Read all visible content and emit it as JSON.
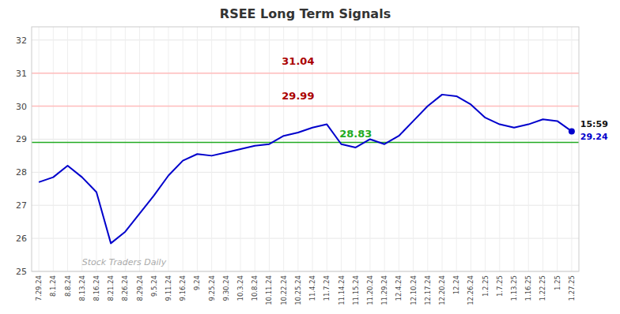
{
  "chart_data": {
    "type": "line",
    "title": "RSEE Long Term Signals",
    "color": "#0000cc",
    "grid": true,
    "ylim": [
      25.0,
      32.4
    ],
    "yticks": [
      25,
      26,
      27,
      28,
      29,
      30,
      31,
      32
    ],
    "categories": [
      "7.29.24",
      "8.1.24",
      "8.8.24",
      "8.13.24",
      "8.16.24",
      "8.21.24",
      "8.26.24",
      "8.29.24",
      "9.5.24",
      "9.11.24",
      "9.16.24",
      "9.24",
      "9.25.24",
      "9.30.24",
      "10.3.24",
      "10.8.24",
      "10.11.24",
      "10.22.24",
      "10.25.24",
      "11.4.24",
      "11.7.24",
      "11.14.24",
      "11.15.24",
      "11.20.24",
      "11.29.24",
      "12.4.24",
      "12.10.24",
      "12.17.24",
      "12.20.24",
      "12.24",
      "12.26.24",
      "1.2.25",
      "1.7.25",
      "1.13.25",
      "1.16.25",
      "1.22.25",
      "1.25",
      "1.27.25"
    ],
    "values": [
      27.7,
      27.85,
      28.2,
      27.85,
      27.4,
      25.85,
      26.2,
      26.75,
      27.3,
      27.9,
      28.35,
      28.55,
      28.5,
      28.6,
      28.7,
      28.8,
      28.85,
      29.1,
      29.2,
      29.35,
      29.45,
      28.85,
      28.75,
      29.0,
      28.85,
      29.1,
      29.55,
      30.0,
      30.35,
      30.3,
      30.05,
      29.65,
      29.45,
      29.35,
      29.45,
      29.6,
      29.55,
      29.24
    ],
    "reference_lines": [
      {
        "value": 28.9,
        "color": "#22aa22"
      },
      {
        "value": 31.0,
        "color": "#ffbbbb"
      },
      {
        "value": 30.0,
        "color": "#ffbbbb"
      }
    ],
    "annotations": [
      {
        "text": "31.04",
        "x": "10.25.24",
        "y": 31.25,
        "color": "#aa0000"
      },
      {
        "text": "29.99",
        "x": "10.25.24",
        "y": 30.2,
        "color": "#aa0000"
      },
      {
        "text": "28.83",
        "x": "11.15.24",
        "y": 29.05,
        "color": "#22aa22"
      }
    ],
    "end_labels": [
      {
        "text": "15:59",
        "y": 29.46,
        "color": "#111111"
      },
      {
        "text": "29.24",
        "y": 29.06,
        "color": "#0000cc"
      }
    ],
    "watermark": {
      "text": "Stock Traders Daily",
      "x": "8.13.24",
      "y": 25.2,
      "color": "#aaaaaa"
    }
  }
}
